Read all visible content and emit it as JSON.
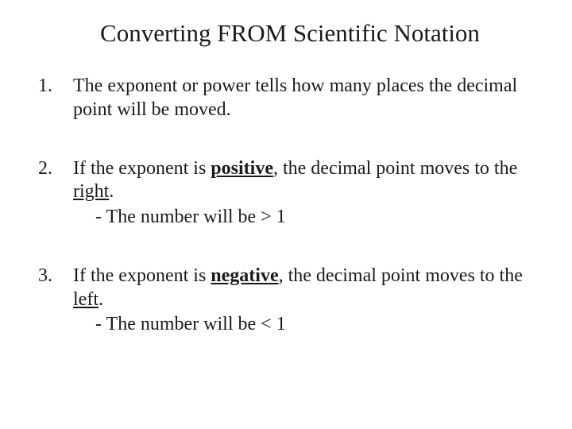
{
  "title": "Converting FROM Scientific Notation",
  "items": [
    {
      "pre": "The exponent or power tells how many places the decimal point will be moved."
    },
    {
      "pre": "If the exponent is ",
      "bold_underline": "positive",
      "mid": ", the decimal point moves to the ",
      "underline": "right",
      "post": ".",
      "sub": "- The number will be > 1"
    },
    {
      "pre": "If the exponent is ",
      "bold_underline": "negative",
      "mid": ", the decimal point moves to the ",
      "underline": "left",
      "post": ".",
      "sub": "- The number will be < 1"
    }
  ]
}
